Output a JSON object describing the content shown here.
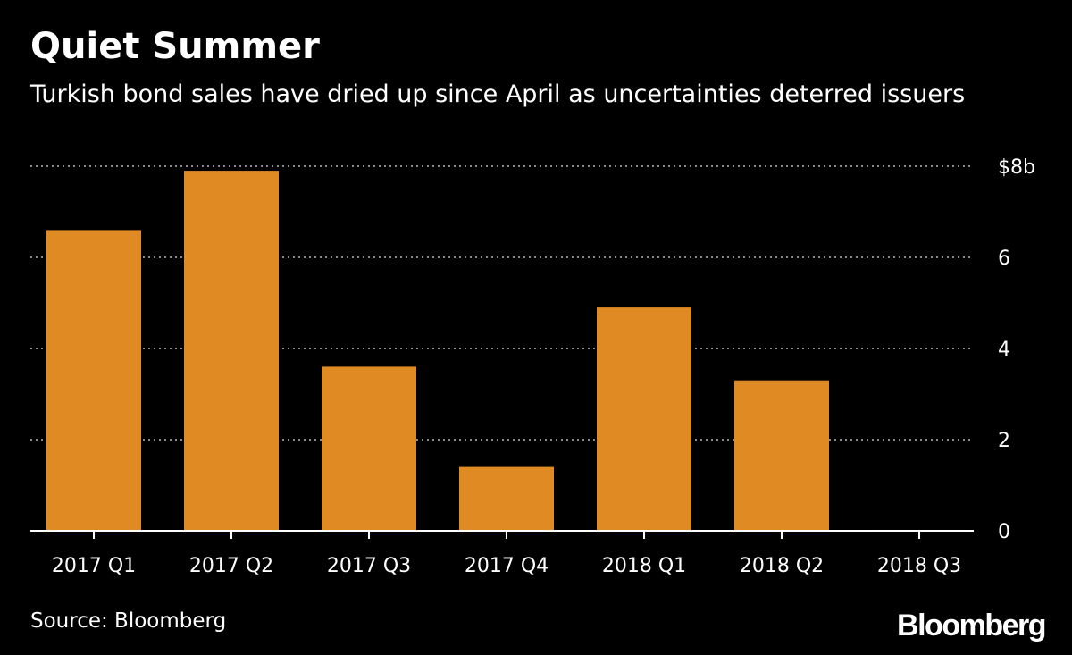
{
  "chart_data": {
    "type": "bar",
    "title": "Quiet Summer",
    "subtitle": "Turkish bond sales have dried up since April as uncertainties deterred issuers",
    "categories": [
      "2017 Q1",
      "2017 Q2",
      "2017 Q3",
      "2017 Q4",
      "2018 Q1",
      "2018 Q2",
      "2018 Q3"
    ],
    "values": [
      6.6,
      7.9,
      3.6,
      1.4,
      4.9,
      3.3,
      0.02
    ],
    "ylim": [
      0,
      8
    ],
    "yticks": [
      {
        "value": 0,
        "label": "0"
      },
      {
        "value": 2,
        "label": "2"
      },
      {
        "value": 4,
        "label": "4"
      },
      {
        "value": 6,
        "label": "6"
      },
      {
        "value": 8,
        "label": "$8b"
      }
    ],
    "xlabel": "",
    "ylabel": "",
    "grid": true,
    "y_axis_position": "right",
    "bar_color": "#e08a24",
    "grid_color": "#8a8a8a",
    "axis_color": "#ffffff",
    "background": "#000000"
  },
  "footer": {
    "source": "Source: Bloomberg",
    "logo": "Bloomberg"
  }
}
